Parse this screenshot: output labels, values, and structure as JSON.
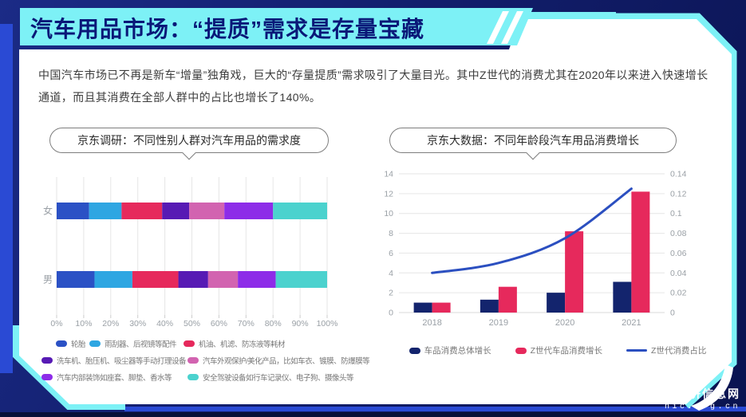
{
  "header": {
    "title": "汽车用品市场：“提质”需求是存量宝藏"
  },
  "intro": {
    "text": "中国汽车市场已不再是新车“增量”独角戏，巨大的“存量提质”需求吸引了大量目光。其中Z世代的消费尤其在2020年以来进入快速增长通道，而且其消费在全部人群中的占比也增长了140%。"
  },
  "watermark": {
    "line1": "经济信息网",
    "line2": "nic.org.cn"
  },
  "colors": {
    "accent_cyan": "#7df1f6",
    "royal_blue": "#2a4ad4",
    "panel_white": "#ffffff",
    "header_text": "#0a1878",
    "axis_text": "#9aa0a6",
    "grid_line": "#e6e6e6",
    "legend_text": "#777777"
  },
  "chart_data": [
    {
      "type": "bar",
      "variant": "horizontal-stacked-100pct",
      "title": "京东调研：不同性别人群对汽车用品的需求度",
      "categories": [
        "女",
        "男"
      ],
      "series": [
        {
          "name": "轮胎",
          "color": "#2b51c5",
          "values": [
            12,
            14
          ]
        },
        {
          "name": "雨刮器、后视镜等配件",
          "color": "#2ea6e2",
          "values": [
            12,
            14
          ]
        },
        {
          "name": "机油、机滤、防冻液等耗材",
          "color": "#e6295c",
          "values": [
            15,
            17
          ]
        },
        {
          "name": "洗车机、胎压机、吸尘器等手动打理设备",
          "color": "#571ab4",
          "values": [
            10,
            11
          ]
        },
        {
          "name": "汽车外观保护/美化产品，比如车衣、镀膜、防爆膜等",
          "color": "#d263b0",
          "values": [
            13,
            11
          ]
        },
        {
          "name": "汽车内部装饰如座套、脚垫、香水等",
          "color": "#8d2ce8",
          "values": [
            18,
            14
          ]
        },
        {
          "name": "安全驾驶设备如行车记录仪、电子狗、摄像头等",
          "color": "#4bd2ce",
          "values": [
            20,
            19
          ]
        }
      ],
      "x_ticks": [
        "0%",
        "10%",
        "20%",
        "30%",
        "40%",
        "50%",
        "60%",
        "70%",
        "80%",
        "90%",
        "100%"
      ],
      "xlim": [
        0,
        100
      ],
      "grid": "vertical"
    },
    {
      "type": "combo-bar-line",
      "title": "京东大数据：不同年龄段汽车用品消费增长",
      "categories": [
        "2018",
        "2019",
        "2020",
        "2021"
      ],
      "bar_series": [
        {
          "name": "车品消费总体增长",
          "color": "#13246d",
          "values": [
            1.0,
            1.3,
            2.0,
            3.1
          ]
        },
        {
          "name": "Z世代车品消费增长",
          "color": "#e6295c",
          "values": [
            1.0,
            2.6,
            8.2,
            12.2
          ]
        }
      ],
      "line_series": {
        "name": "Z世代消费占比",
        "color": "#2b4fc0",
        "axis": "right",
        "values": [
          0.04,
          0.05,
          0.075,
          0.125
        ]
      },
      "left_axis": {
        "min": 0,
        "max": 14,
        "ticks": [
          "0",
          "2",
          "4",
          "6",
          "8",
          "10",
          "12",
          "14"
        ]
      },
      "right_axis": {
        "min": 0,
        "max": 0.14,
        "ticks": [
          "0",
          "0.02",
          "0.04",
          "0.06",
          "0.08",
          "0.1",
          "0.12",
          "0.14"
        ]
      },
      "grid": "horizontal",
      "legend_position": "bottom"
    }
  ]
}
